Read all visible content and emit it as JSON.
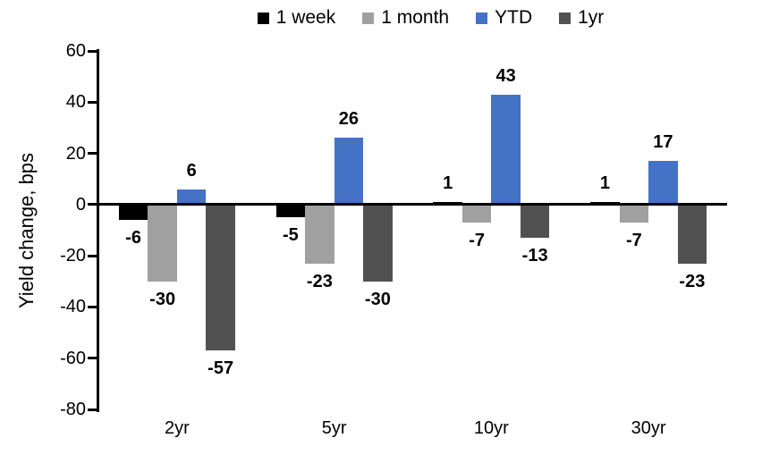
{
  "chart_data": {
    "type": "bar",
    "title": "",
    "ylabel": "Yield change, bps",
    "xlabel": "",
    "categories": [
      "2yr",
      "5yr",
      "10yr",
      "30yr"
    ],
    "series": [
      {
        "name": "1 week",
        "color": "#000000",
        "values": [
          -6,
          -5,
          1,
          1
        ]
      },
      {
        "name": "1 month",
        "color": "#A0A0A0",
        "values": [
          -30,
          -23,
          -7,
          -7
        ]
      },
      {
        "name": "YTD",
        "color": "#4472C4",
        "values": [
          6,
          26,
          43,
          17
        ]
      },
      {
        "name": "1yr",
        "color": "#515151",
        "values": [
          -57,
          -30,
          -13,
          -23
        ]
      }
    ],
    "ylim": [
      -80,
      60
    ],
    "yticks": [
      60,
      40,
      20,
      0,
      -20,
      -40,
      -60,
      -80
    ],
    "grid": false,
    "legend_position": "top",
    "data_labels": "outside-end",
    "axis_color": "#000000",
    "background": "#ffffff"
  }
}
